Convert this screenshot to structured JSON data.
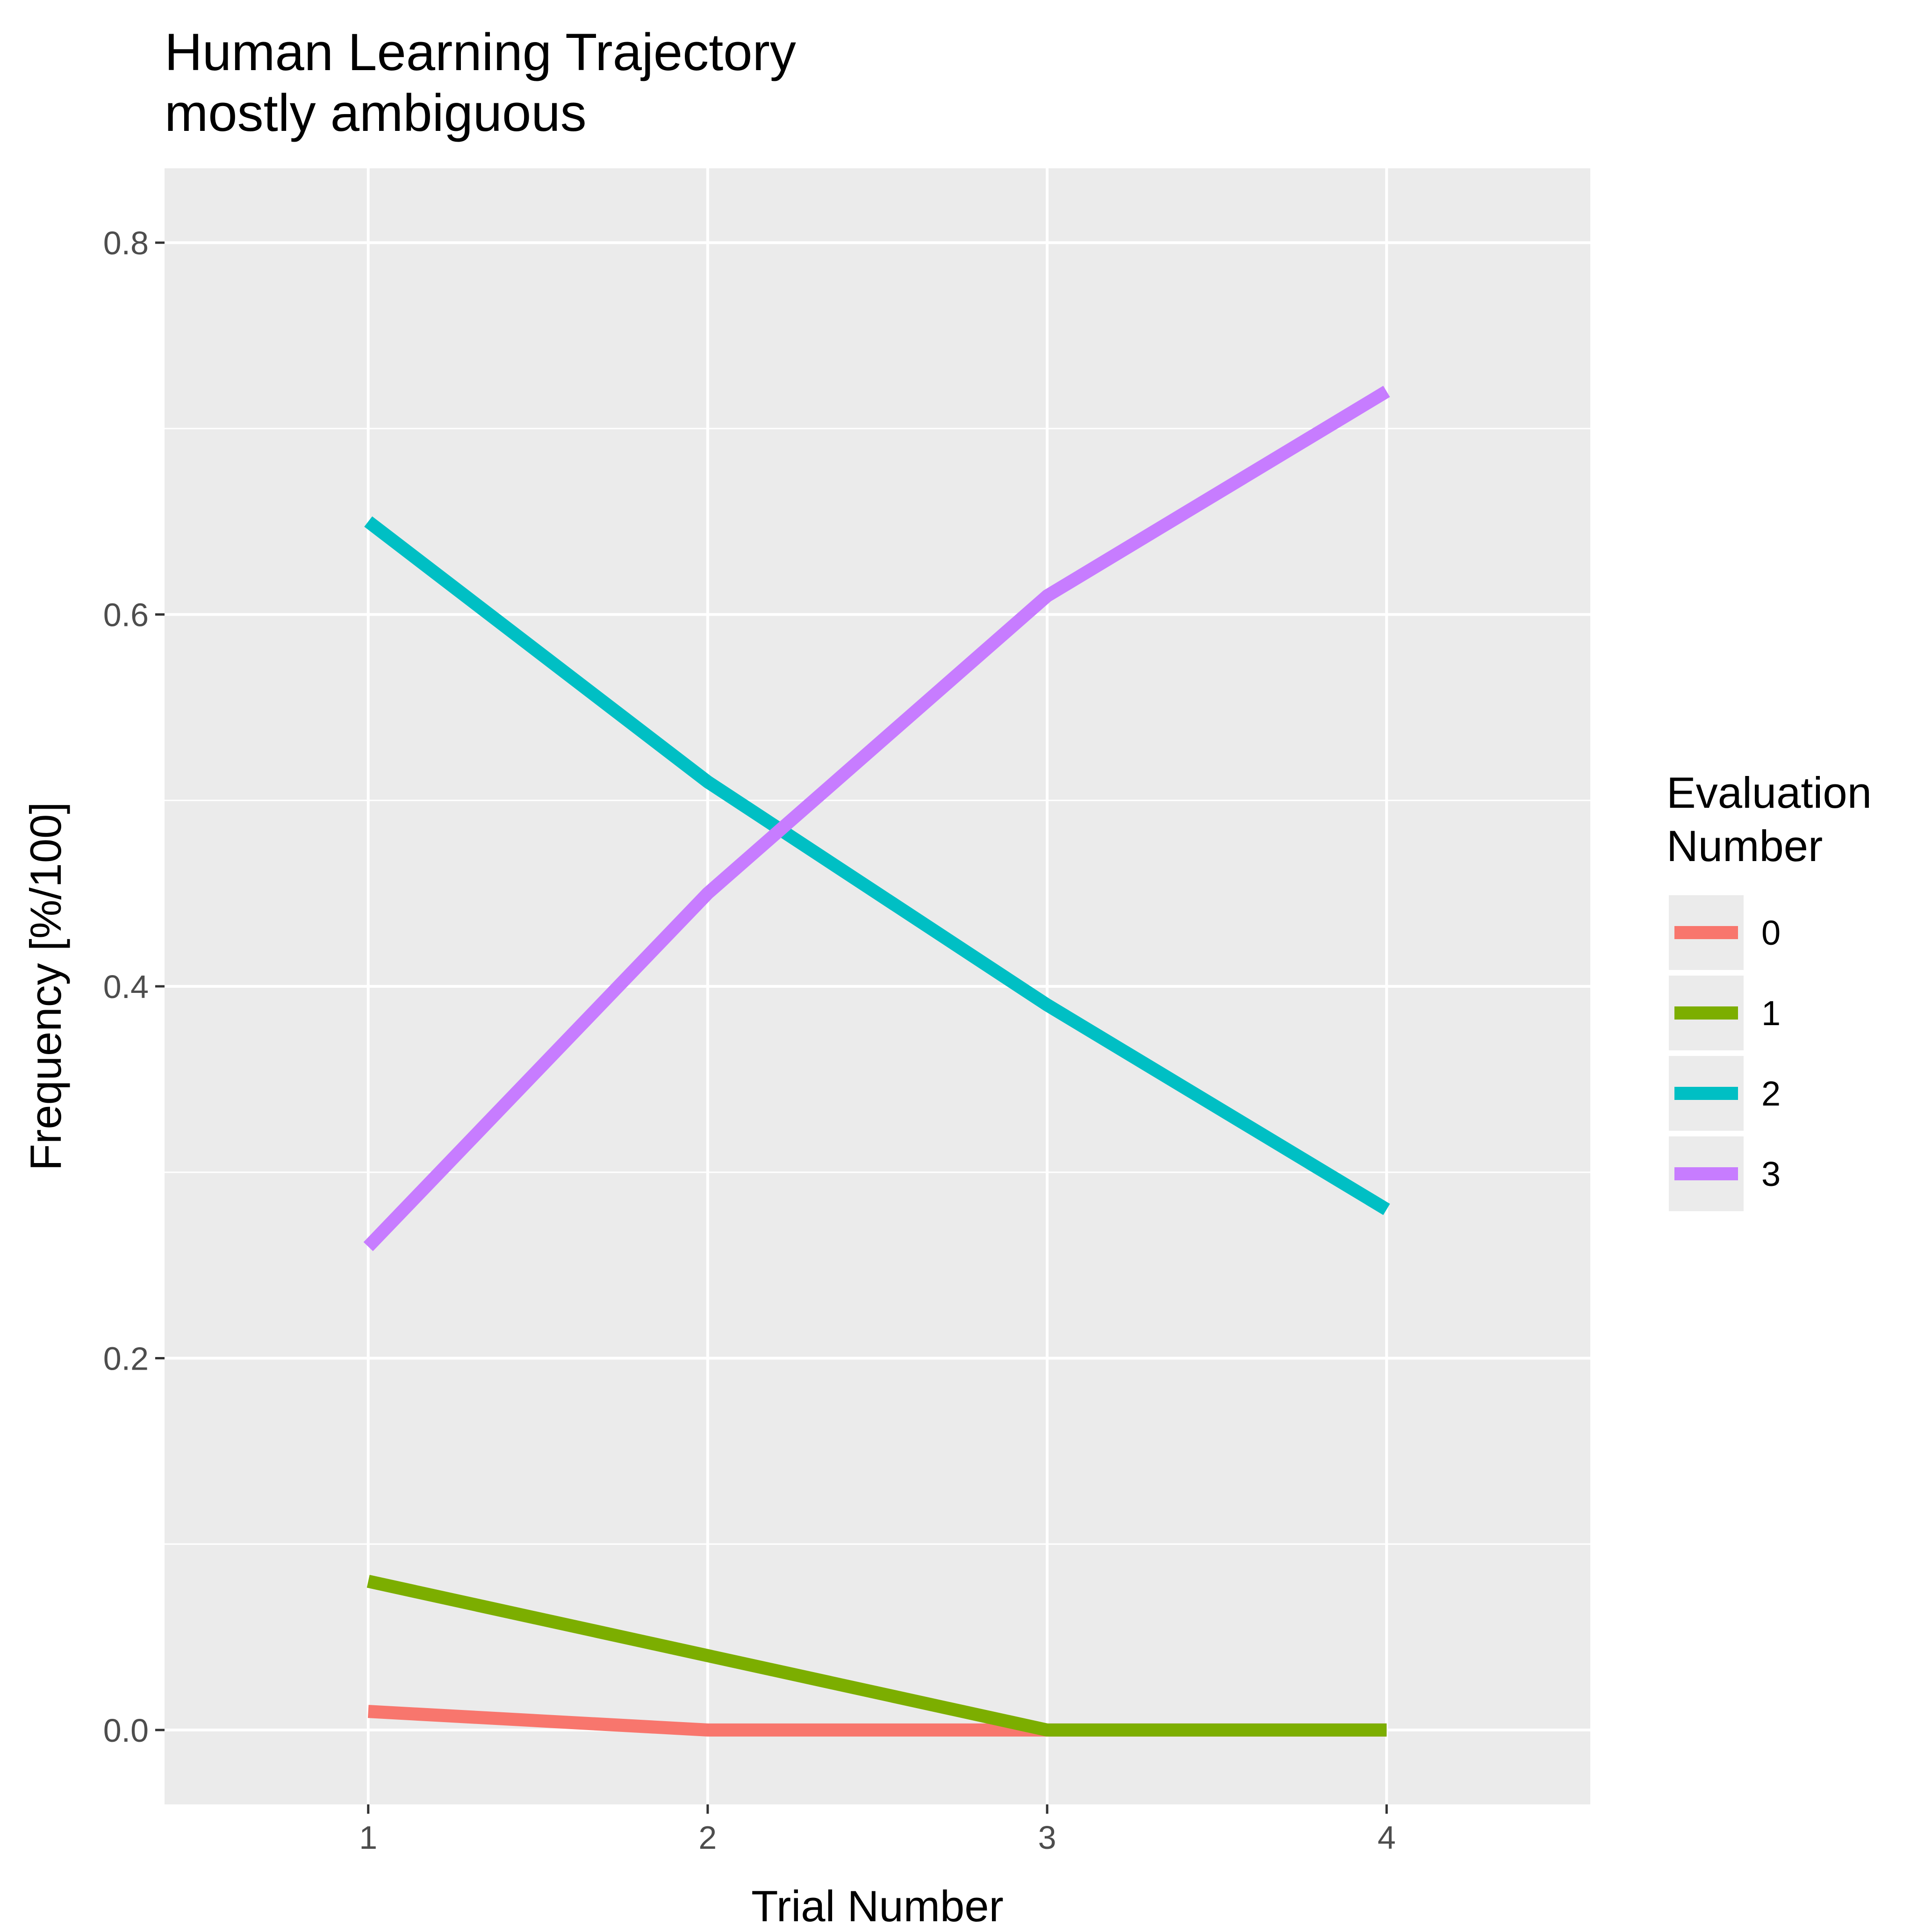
{
  "chart_data": {
    "type": "line",
    "title": "Human Learning Trajectory",
    "subtitle": "mostly ambiguous",
    "xlabel": "Trial Number",
    "ylabel": "Frequency [%/100]",
    "x": [
      1,
      2,
      3,
      4
    ],
    "x_ticks": [
      "1",
      "2",
      "3",
      "4"
    ],
    "y_ticks": [
      "0.0",
      "0.2",
      "0.4",
      "0.6",
      "0.8"
    ],
    "xlim": [
      0.4,
      4.6
    ],
    "ylim": [
      -0.04,
      0.84
    ],
    "grid": true,
    "legend_title": [
      "Evaluation",
      "Number"
    ],
    "legend_position": "right",
    "series": [
      {
        "name": "0",
        "color": "#F8766D",
        "values": [
          0.01,
          0.0,
          0.0,
          0.0
        ]
      },
      {
        "name": "1",
        "color": "#7CAE00",
        "values": [
          0.08,
          0.04,
          0.0,
          0.0
        ]
      },
      {
        "name": "2",
        "color": "#00BFC4",
        "values": [
          0.65,
          0.51,
          0.39,
          0.28
        ]
      },
      {
        "name": "3",
        "color": "#C77CFF",
        "values": [
          0.26,
          0.45,
          0.61,
          0.72
        ]
      }
    ]
  },
  "colors": {
    "panel_background": "#EBEBEB",
    "grid": "#FFFFFF",
    "tick_text": "#4D4D4D",
    "axis_tick": "#333333"
  }
}
